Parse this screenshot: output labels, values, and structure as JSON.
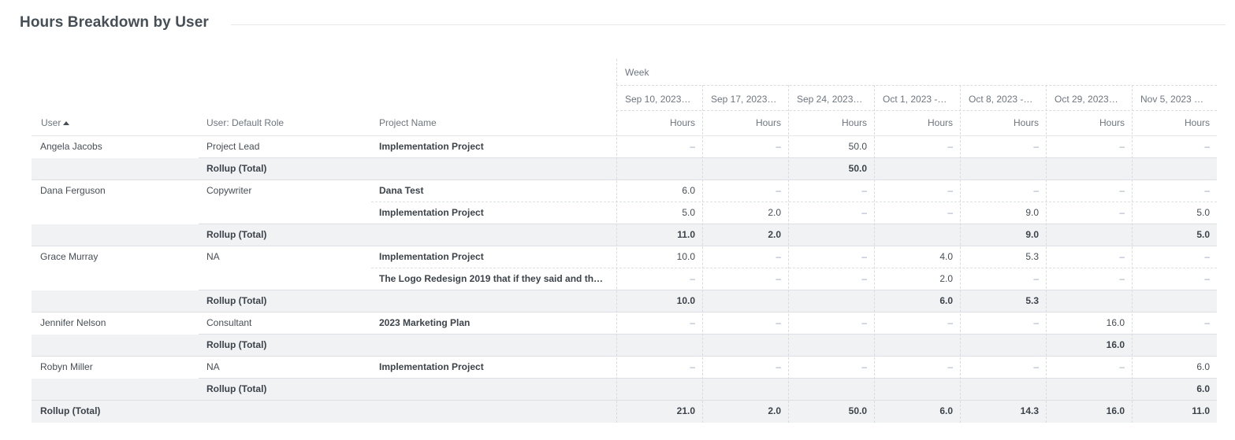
{
  "title": "Hours Breakdown by User",
  "header": {
    "group_label": "Week",
    "user_col": "User",
    "role_col": "User: Default Role",
    "project_col": "Project Name",
    "metric_label": "Hours",
    "weeks": [
      "Sep 10, 2023…",
      "Sep 17, 2023…",
      "Sep 24, 2023…",
      "Oct 1, 2023 -…",
      "Oct 8, 2023 -…",
      "Oct 29, 2023…",
      "Nov 5, 2023 …"
    ]
  },
  "users": [
    {
      "name": "Angela Jacobs",
      "role": "Project Lead",
      "projects": [
        {
          "name": "Implementation Project",
          "values": [
            "–",
            "–",
            "50.0",
            "–",
            "–",
            "–",
            "–"
          ]
        }
      ],
      "rollup": {
        "label": "Rollup (Total)",
        "values": [
          "",
          "",
          "50.0",
          "",
          "",
          "",
          ""
        ]
      }
    },
    {
      "name": "Dana Ferguson",
      "role": "Copywriter",
      "projects": [
        {
          "name": "Dana Test",
          "values": [
            "6.0",
            "–",
            "–",
            "–",
            "–",
            "–",
            "–"
          ]
        },
        {
          "name": "Implementation Project",
          "values": [
            "5.0",
            "2.0",
            "–",
            "–",
            "9.0",
            "–",
            "5.0"
          ]
        }
      ],
      "rollup": {
        "label": "Rollup (Total)",
        "values": [
          "11.0",
          "2.0",
          "",
          "",
          "9.0",
          "",
          "5.0"
        ]
      }
    },
    {
      "name": "Grace Murray",
      "role": "NA",
      "projects": [
        {
          "name": "Implementation Project",
          "values": [
            "10.0",
            "–",
            "–",
            "4.0",
            "5.3",
            "–",
            "–"
          ]
        },
        {
          "name": "The Logo Redesign 2019 that if they said and th…",
          "values": [
            "–",
            "–",
            "–",
            "2.0",
            "–",
            "–",
            "–"
          ]
        }
      ],
      "rollup": {
        "label": "Rollup (Total)",
        "values": [
          "10.0",
          "",
          "",
          "6.0",
          "5.3",
          "",
          ""
        ]
      }
    },
    {
      "name": "Jennifer Nelson",
      "role": "Consultant",
      "projects": [
        {
          "name": "2023 Marketing Plan",
          "values": [
            "–",
            "–",
            "–",
            "–",
            "–",
            "16.0",
            "–"
          ]
        }
      ],
      "rollup": {
        "label": "Rollup (Total)",
        "values": [
          "",
          "",
          "",
          "",
          "",
          "16.0",
          ""
        ]
      }
    },
    {
      "name": "Robyn Miller",
      "role": "NA",
      "projects": [
        {
          "name": "Implementation Project",
          "values": [
            "–",
            "–",
            "–",
            "–",
            "–",
            "–",
            "6.0"
          ]
        }
      ],
      "rollup": {
        "label": "Rollup (Total)",
        "values": [
          "",
          "",
          "",
          "",
          "",
          "",
          "6.0"
        ]
      }
    }
  ],
  "grand_total": {
    "label": "Rollup (Total)",
    "values": [
      "21.0",
      "2.0",
      "50.0",
      "6.0",
      "14.3",
      "16.0",
      "11.0"
    ]
  }
}
